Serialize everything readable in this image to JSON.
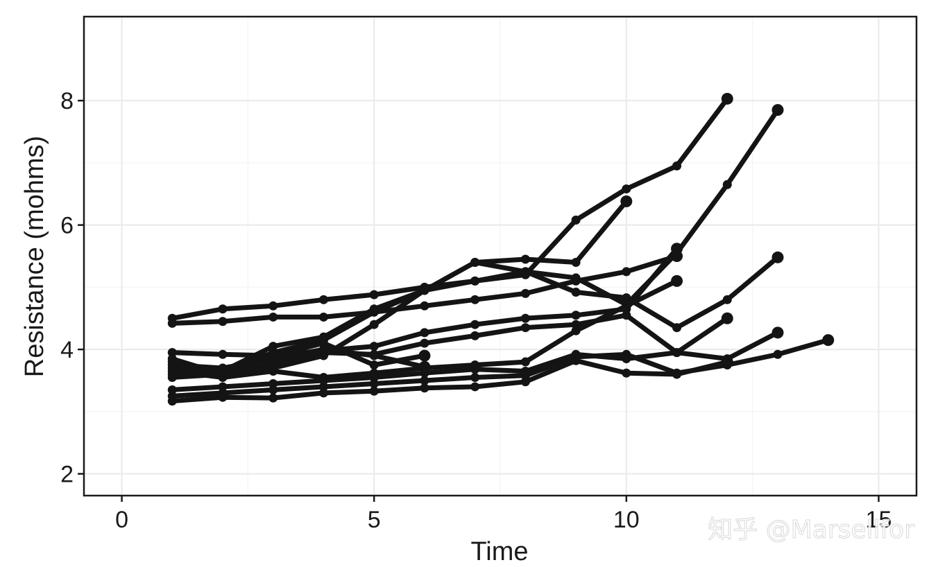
{
  "chart_data": {
    "type": "line",
    "title": "",
    "xlabel": "Time",
    "ylabel": "Resistance (mohms)",
    "xlim": [
      -0.75,
      15.75
    ],
    "ylim": [
      1.65,
      9.35
    ],
    "x_ticks": [
      0,
      5,
      10,
      15
    ],
    "y_ticks": [
      2,
      4,
      6,
      8
    ],
    "x_tick_labels": [
      "0",
      "5",
      "10",
      "15"
    ],
    "y_tick_labels": [
      "2",
      "4",
      "6",
      "8"
    ],
    "grid": true,
    "legend": "none",
    "line_color": "#141414",
    "series": [
      {
        "x": [
          1,
          2,
          3,
          4,
          5,
          6,
          7,
          8,
          9,
          10,
          11,
          12
        ],
        "values": [
          4.5,
          4.65,
          4.7,
          4.8,
          4.88,
          5.0,
          5.1,
          5.2,
          6.08,
          6.58,
          6.95,
          8.03
        ]
      },
      {
        "x": [
          1,
          2,
          3,
          4,
          5,
          6,
          7,
          8,
          9,
          10
        ],
        "values": [
          3.7,
          3.65,
          4.05,
          4.2,
          4.65,
          4.95,
          5.4,
          5.45,
          5.4,
          6.38
        ]
      },
      {
        "x": [
          1,
          2,
          3,
          4,
          5,
          6,
          7,
          8,
          9,
          10,
          11,
          12,
          13
        ],
        "values": [
          3.55,
          3.6,
          3.7,
          3.9,
          4.4,
          4.95,
          5.1,
          5.25,
          5.15,
          4.72,
          5.55,
          6.65,
          7.85
        ]
      },
      {
        "x": [
          1,
          2,
          3,
          4,
          5,
          6,
          7,
          8,
          9,
          10,
          11,
          12,
          13
        ],
        "values": [
          3.8,
          3.65,
          3.95,
          4.15,
          4.6,
          4.95,
          5.4,
          5.25,
          4.92,
          4.83,
          4.35,
          4.8,
          5.48
        ]
      },
      {
        "x": [
          1,
          2,
          3,
          4,
          5,
          6,
          7,
          8,
          9,
          10,
          11
        ],
        "values": [
          4.42,
          4.45,
          4.52,
          4.52,
          4.6,
          4.7,
          4.8,
          4.9,
          5.1,
          5.25,
          5.5
        ]
      },
      {
        "x": [
          1,
          2,
          3,
          4,
          5,
          6,
          7,
          8,
          9,
          10,
          11
        ],
        "values": [
          3.95,
          3.92,
          3.9,
          3.98,
          4.05,
          4.27,
          4.4,
          4.5,
          4.55,
          4.65,
          5.62
        ]
      },
      {
        "x": [
          1,
          2,
          3,
          4,
          5,
          6,
          7,
          8,
          9,
          10,
          11,
          12
        ],
        "values": [
          3.6,
          3.6,
          3.78,
          3.95,
          3.92,
          4.1,
          4.22,
          4.35,
          4.4,
          4.55,
          3.95,
          4.5
        ]
      },
      {
        "x": [
          1,
          2,
          3,
          4,
          5,
          6,
          7,
          8,
          9,
          10,
          11
        ],
        "values": [
          3.65,
          3.55,
          3.65,
          3.55,
          3.62,
          3.7,
          3.75,
          3.8,
          4.3,
          4.7,
          5.1
        ]
      },
      {
        "x": [
          1,
          2,
          3,
          4,
          5,
          6
        ],
        "values": [
          3.85,
          3.6,
          3.9,
          4.1,
          3.75,
          3.9
        ]
      },
      {
        "x": [
          1,
          2,
          3,
          4,
          5,
          6
        ],
        "values": [
          3.75,
          3.7,
          3.85,
          4.0,
          3.9,
          3.72
        ]
      },
      {
        "x": [
          1,
          2,
          3,
          4,
          5,
          6,
          7,
          8,
          9,
          10,
          11,
          12,
          13
        ],
        "values": [
          3.35,
          3.4,
          3.45,
          3.5,
          3.55,
          3.62,
          3.68,
          3.65,
          3.92,
          3.85,
          3.95,
          3.85,
          4.27
        ]
      },
      {
        "x": [
          1,
          2,
          3,
          4,
          5,
          6,
          7,
          8,
          9,
          10,
          11,
          12,
          13,
          14
        ],
        "values": [
          3.25,
          3.3,
          3.35,
          3.4,
          3.45,
          3.5,
          3.55,
          3.58,
          3.88,
          3.92,
          3.62,
          3.75,
          3.92,
          4.15
        ]
      },
      {
        "x": [
          1,
          2,
          3,
          4,
          5,
          6,
          7,
          8,
          9,
          10,
          11,
          12
        ],
        "values": [
          3.17,
          3.23,
          3.22,
          3.3,
          3.33,
          3.38,
          3.4,
          3.48,
          3.82,
          3.62,
          3.6,
          3.8
        ]
      }
    ]
  },
  "watermark": {
    "text": "知乎 @Marsellfor"
  }
}
